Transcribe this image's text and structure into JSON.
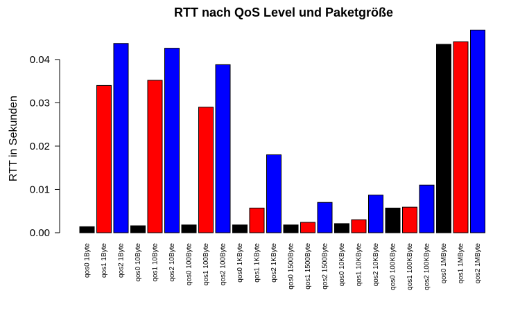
{
  "chart_data": {
    "type": "bar",
    "title": "RTT nach QoS Level und Paketgröße",
    "xlabel": "",
    "ylabel": "RTT in Sekunden",
    "ylim": [
      0,
      0.0475
    ],
    "yticks": [
      0.0,
      0.01,
      0.02,
      0.03,
      0.04
    ],
    "ytick_labels": [
      "0.00",
      "0.01",
      "0.02",
      "0.03",
      "0.04"
    ],
    "grid": false,
    "legend": "none",
    "categories": [
      "qos0 1Byte",
      "qos1 1Byte",
      "qos2 1Byte",
      "qos0 10Byte",
      "qos1 10Byte",
      "qos2 10Byte",
      "qos0 100Byte",
      "qos1 100Byte",
      "qos2 100Byte",
      "qos0 1KByte",
      "qos1 1KByte",
      "qos2 1KByte",
      "qos0 1500Byte",
      "qos1 1500Byte",
      "qos2 1500Byte",
      "qos0 10KByte",
      "qos1 10KByte",
      "qos2 10KByte",
      "qos0 100KByte",
      "qos1 100KByte",
      "qos2 100KByte",
      "qos0 1MByte",
      "qos1 1MByte",
      "qos2 1MByte"
    ],
    "values": [
      0.0014,
      0.034,
      0.0437,
      0.0016,
      0.0352,
      0.0426,
      0.0018,
      0.029,
      0.0388,
      0.0018,
      0.0057,
      0.018,
      0.0018,
      0.0024,
      0.007,
      0.0021,
      0.003,
      0.0087,
      0.0057,
      0.0059,
      0.011,
      0.0435,
      0.0441,
      0.0468
    ],
    "colors": [
      "#000000",
      "#ff0000",
      "#0000ff",
      "#000000",
      "#ff0000",
      "#0000ff",
      "#000000",
      "#ff0000",
      "#0000ff",
      "#000000",
      "#ff0000",
      "#0000ff",
      "#000000",
      "#ff0000",
      "#0000ff",
      "#000000",
      "#ff0000",
      "#0000ff",
      "#000000",
      "#ff0000",
      "#0000ff",
      "#000000",
      "#ff0000",
      "#0000ff"
    ]
  }
}
